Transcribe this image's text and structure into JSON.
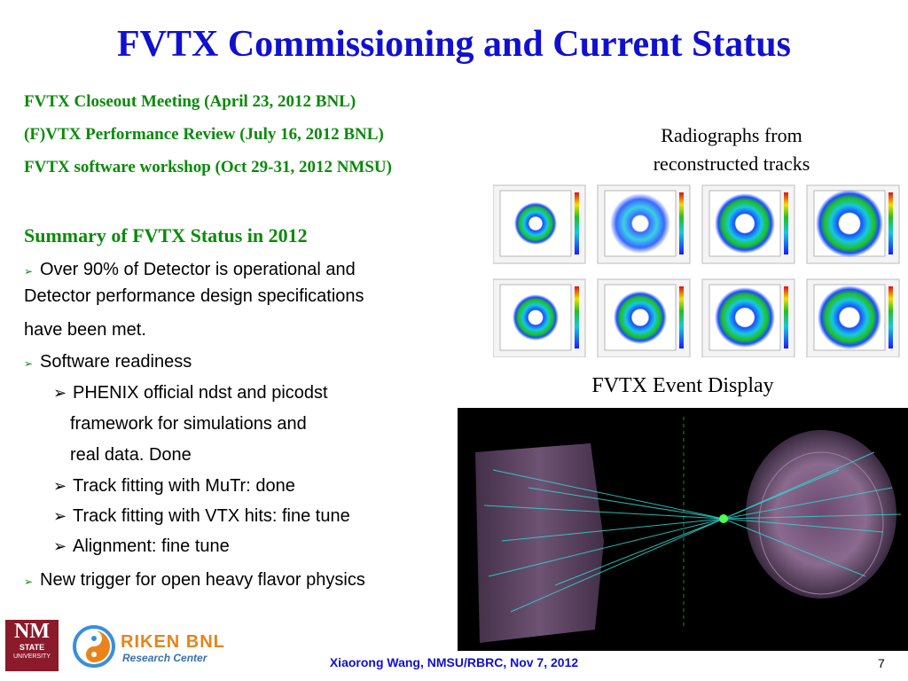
{
  "slide": {
    "title": "FVTX Commissioning and Current Status",
    "meetings": [
      "FVTX Closeout Meeting  (April 23, 2012 BNL)",
      "(F)VTX Performance Review (July 16, 2012 BNL)",
      "FVTX software workshop (Oct 29-31, 2012 NMSU)"
    ],
    "summary_heading": "Summary of FVTX Status in 2012",
    "bullets": {
      "b1_line1": "Over 90% of Detector is operational and",
      "b1_line2": "Detector performance design specifications",
      "b1_line3": "have been met.",
      "b2": "Software readiness",
      "sub1_line1": "PHENIX official ndst and picodst",
      "sub1_line2": "framework for simulations and",
      "sub1_line3": "real data. Done",
      "sub2": "Track fitting with MuTr: done",
      "sub3": "Track fitting with VTX hits: fine tune",
      "sub4": "Alignment: fine tune",
      "b3": "New trigger for open heavy flavor physics"
    },
    "arrow_glyph": "➢",
    "radiograph_caption_line1": "Radiographs from",
    "radiograph_caption_line2": "reconstructed tracks",
    "event_display_caption": "FVTX Event Display",
    "footer": "Xiaorong Wang, NMSU/RBRC, Nov 7, 2012",
    "page_number": "7"
  },
  "logos": {
    "nmsu": {
      "line1": "NM",
      "line2": "STATE",
      "line3": "UNIVERSITY"
    },
    "riken": {
      "line1": "RIKEN BNL",
      "line2": "Research Center"
    }
  },
  "colors": {
    "title": "#1010d0",
    "meetings": "#0a8a0a",
    "bullet_arrow": "#0a8a0a",
    "footer": "#1010d0",
    "nmsu_maroon": "#8b1a2b",
    "riken_orange": "#e8841a"
  }
}
